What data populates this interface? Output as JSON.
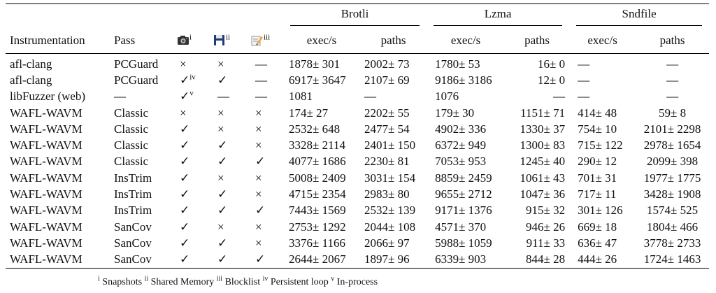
{
  "table": {
    "groups": [
      "Brotli",
      "Lzma",
      "Sndfile"
    ],
    "columns": [
      "Instrumentation",
      "Pass"
    ],
    "icon_sups": [
      "i",
      "ii",
      "iii"
    ],
    "subcolumns": [
      "exec/s",
      "paths",
      "exec/s",
      "paths",
      "exec/s",
      "paths"
    ],
    "rows": [
      [
        "afl-clang",
        "PCGuard",
        "×",
        "×",
        "—",
        "1878± 301",
        "2002± 73",
        "1780± 53",
        "16± 0",
        "—",
        "—"
      ],
      [
        "afl-clang",
        "PCGuard",
        {
          "text": "✓",
          "sup": "iv"
        },
        "✓",
        "—",
        "6917± 3647",
        "2107± 69",
        "9186± 3186",
        "12± 0",
        "—",
        "—"
      ],
      [
        "libFuzzer (web)",
        "—",
        {
          "text": "✓",
          "sup": "v"
        },
        "—",
        "—",
        "1081",
        "—",
        "1076",
        "—",
        "—",
        "—"
      ],
      [
        "WAFL-WAVM",
        "Classic",
        "×",
        "×",
        "×",
        "174± 27",
        "2202± 55",
        "179± 30",
        "1151± 71",
        "414± 48",
        "59± 8"
      ],
      [
        "WAFL-WAVM",
        "Classic",
        "✓",
        "×",
        "×",
        "2532± 648",
        "2477± 54",
        "4902± 336",
        "1330± 37",
        "754± 10",
        "2101± 2298"
      ],
      [
        "WAFL-WAVM",
        "Classic",
        "✓",
        "✓",
        "×",
        "3328± 2114",
        "2401± 150",
        "6372± 949",
        "1300± 83",
        "715± 122",
        "2978± 1654"
      ],
      [
        "WAFL-WAVM",
        "Classic",
        "✓",
        "✓",
        "✓",
        "4077± 1686",
        "2230± 81",
        "7053± 953",
        "1245± 40",
        "290± 12",
        "2099± 398"
      ],
      [
        "WAFL-WAVM",
        "InsTrim",
        "✓",
        "×",
        "×",
        "5008± 2409",
        "3031± 154",
        "8859± 2459",
        "1061± 43",
        "701± 31",
        "1977± 1775"
      ],
      [
        "WAFL-WAVM",
        "InsTrim",
        "✓",
        "✓",
        "×",
        "4715± 2354",
        "2983± 80",
        "9655± 2712",
        "1047± 36",
        "717± 11",
        "3428± 1908"
      ],
      [
        "WAFL-WAVM",
        "InsTrim",
        "✓",
        "✓",
        "✓",
        "7443± 1569",
        "2532± 139",
        "9171± 1376",
        "915± 32",
        "301± 126",
        "1574± 525"
      ],
      [
        "WAFL-WAVM",
        "SanCov",
        "✓",
        "×",
        "×",
        "2753± 1292",
        "2044± 108",
        "4571± 370",
        "946± 26",
        "669± 18",
        "1804± 466"
      ],
      [
        "WAFL-WAVM",
        "SanCov",
        "✓",
        "✓",
        "×",
        "3376± 1166",
        "2066± 97",
        "5988± 1059",
        "911± 33",
        "636± 47",
        "3778± 2733"
      ],
      [
        "WAFL-WAVM",
        "SanCov",
        "✓",
        "✓",
        "✓",
        "2644± 2067",
        "1897± 96",
        "6339± 903",
        "844± 28",
        "444± 26",
        "1724± 1463"
      ]
    ],
    "footnote": [
      {
        "sup": "i",
        "text": "Snapshots"
      },
      {
        "sup": "ii",
        "text": "Shared Memory"
      },
      {
        "sup": "iii",
        "text": "Blocklist"
      },
      {
        "sup": "iv",
        "text": "Persistent loop"
      },
      {
        "sup": "v",
        "text": "In-process"
      }
    ]
  }
}
